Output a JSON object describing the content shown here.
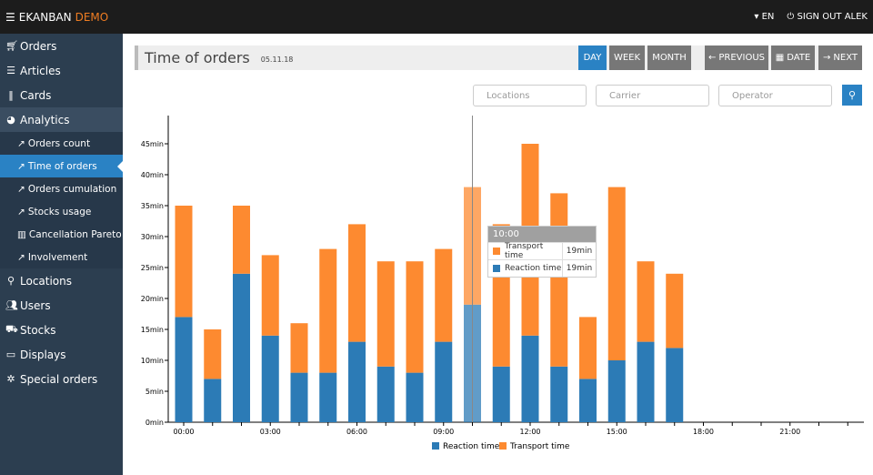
{
  "topbar": {
    "brand": "EKANBAN",
    "brand_accent": "DEMO",
    "lang": "EN",
    "signout": "SIGN OUT ALEK"
  },
  "sidebar": {
    "items": [
      {
        "label": "Orders",
        "icon": "cart-icon"
      },
      {
        "label": "Articles",
        "icon": "list-icon"
      },
      {
        "label": "Cards",
        "icon": "barcode-icon"
      },
      {
        "label": "Analytics",
        "icon": "pie-chart-icon"
      }
    ],
    "analytics_sub": [
      "Orders count",
      "Time of orders",
      "Orders cumulation",
      "Stocks usage",
      "Cancellation Pareto",
      "Involvement"
    ],
    "items2": [
      {
        "label": "Locations",
        "icon": "map-marker-icon"
      },
      {
        "label": "Users",
        "icon": "users-icon"
      },
      {
        "label": "Stocks",
        "icon": "stocks-icon"
      },
      {
        "label": "Displays",
        "icon": "desktop-icon"
      },
      {
        "label": "Special orders",
        "icon": "special-icon"
      }
    ]
  },
  "header": {
    "title": "Time of orders",
    "date": "05.11.18"
  },
  "buttons": {
    "day": "DAY",
    "week": "WEEK",
    "month": "MONTH",
    "previous": "PREVIOUS",
    "date": "DATE",
    "next": "NEXT"
  },
  "filters": {
    "locations": "Locations",
    "carrier": "Carrier",
    "operator": "Operator"
  },
  "tooltip": {
    "title": "10:00",
    "rows": [
      {
        "label": "Transport time",
        "value": "19min"
      },
      {
        "label": "Reaction time",
        "value": "19min"
      }
    ]
  },
  "colors": {
    "reaction": "#2c7bb6",
    "transport": "#fd8a30"
  },
  "chart_data": {
    "type": "bar",
    "stacked": true,
    "categories": [
      "00:00",
      "01:00",
      "02:00",
      "03:00",
      "04:00",
      "05:00",
      "06:00",
      "07:00",
      "08:00",
      "09:00",
      "10:00",
      "11:00",
      "12:00",
      "13:00",
      "14:00",
      "15:00",
      "16:00",
      "17:00",
      "18:00",
      "19:00",
      "20:00",
      "21:00",
      "22:00",
      "23:00"
    ],
    "series": [
      {
        "name": "Reaction time",
        "values": [
          17,
          7,
          24,
          14,
          8,
          8,
          13,
          9,
          8,
          13,
          19,
          9,
          14,
          9,
          7,
          10,
          13,
          12,
          0,
          0,
          0,
          0,
          0,
          0
        ]
      },
      {
        "name": "Transport time",
        "values": [
          18,
          8,
          11,
          13,
          8,
          20,
          19,
          17,
          18,
          15,
          19,
          23,
          31,
          28,
          10,
          28,
          13,
          12,
          0,
          0,
          0,
          0,
          0,
          0
        ]
      }
    ],
    "xticks": [
      "00:00",
      "03:00",
      "06:00",
      "09:00",
      "12:00",
      "15:00",
      "18:00",
      "21:00"
    ],
    "yticks": [
      "0min",
      "5min",
      "10min",
      "15min",
      "20min",
      "25min",
      "30min",
      "35min",
      "40min",
      "45min"
    ],
    "ylim": [
      0,
      49
    ],
    "legend": "bottom",
    "highlighted": "10:00"
  }
}
